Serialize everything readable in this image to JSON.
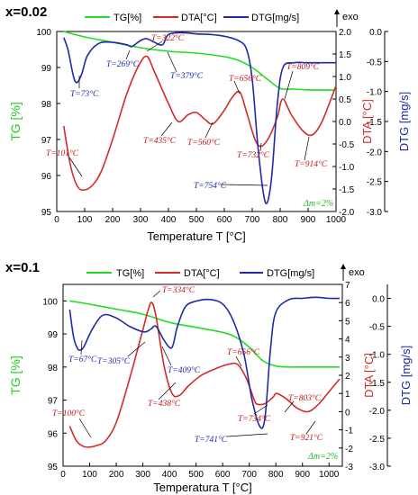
{
  "chart_data": [
    {
      "panel_label": "x=0.02",
      "type": "line",
      "legend": [
        "TG[%]",
        "DTA[°C]",
        "DTG[mg/s]"
      ],
      "exo_label": "exo",
      "xlabel": "Temperature T [°C]",
      "ylabel_left": "TG [%]",
      "ylabel_right1": "DTA [°C]",
      "ylabel_right2": "DTG [mg/s]",
      "xlim": [
        0,
        1000
      ],
      "y_tg_lim": [
        95,
        100
      ],
      "y_dta_lim": [
        -2.0,
        2.0
      ],
      "y_dtg_lim": [
        -3.0,
        0.0
      ],
      "x_ticks": [
        "0",
        "100",
        "200",
        "300",
        "400",
        "500",
        "600",
        "700",
        "800",
        "900",
        "1000"
      ],
      "tg_ticks": [
        "95",
        "96",
        "97",
        "98",
        "99",
        "100"
      ],
      "dta_ticks": [
        "-2.0",
        "-1.5",
        "-1.0",
        "-0.5",
        "0.0",
        "0.5",
        "1.0",
        "1.5",
        "2.0"
      ],
      "dtg_ticks": [
        "-3.0",
        "-2.5",
        "-2.0",
        "-1.5",
        "-1.0",
        "-0.5",
        "0.0"
      ],
      "colors": {
        "tg": "#22dd22",
        "dta": "#d42a2a",
        "dtg": "#1f2aa8",
        "labels_red": "#c01818",
        "labels_blue": "#1f2aa8",
        "mass_loss": "#22bb22"
      },
      "mass_loss_label": "Δm=2%",
      "series": [
        {
          "name": "TG[%]",
          "axis": "tg",
          "x": [
            25,
            100,
            200,
            300,
            400,
            500,
            600,
            650,
            700,
            750,
            800,
            850,
            900,
            1000
          ],
          "y": [
            100.0,
            99.85,
            99.7,
            99.55,
            99.45,
            99.4,
            99.3,
            99.2,
            99.0,
            98.7,
            98.42,
            98.4,
            98.38,
            98.37
          ]
        },
        {
          "name": "DTA[°C]",
          "axis": "dta",
          "x": [
            25,
            50,
            75,
            101,
            130,
            160,
            200,
            250,
            290,
            322,
            350,
            400,
            435,
            470,
            500,
            530,
            560,
            600,
            630,
            656,
            680,
            710,
            732,
            760,
            790,
            809,
            840,
            880,
            914,
            950,
            1000
          ],
          "y": [
            -0.1,
            -1.0,
            -1.45,
            -1.52,
            -1.4,
            -1.1,
            -0.4,
            0.6,
            1.2,
            1.45,
            1.1,
            0.4,
            0.0,
            0.15,
            0.2,
            0.05,
            -0.05,
            0.25,
            0.55,
            0.65,
            0.2,
            -0.4,
            -0.55,
            -0.35,
            0.1,
            0.5,
            0.15,
            -0.2,
            -0.3,
            0.0,
            0.8
          ]
        },
        {
          "name": "DTG[mg/s]",
          "axis": "dtg",
          "x": [
            25,
            40,
            60,
            73,
            90,
            110,
            150,
            200,
            250,
            269,
            300,
            322,
            350,
            379,
            400,
            450,
            500,
            550,
            600,
            650,
            680,
            700,
            720,
            740,
            754,
            770,
            790,
            810,
            850,
            900,
            950,
            1000
          ],
          "y": [
            -0.1,
            -0.3,
            -0.75,
            -0.85,
            -0.7,
            -0.4,
            -0.2,
            -0.18,
            -0.22,
            -0.25,
            -0.15,
            -0.12,
            -0.18,
            -0.22,
            -0.05,
            -0.02,
            -0.04,
            -0.05,
            -0.08,
            -0.15,
            -0.3,
            -0.8,
            -1.9,
            -2.7,
            -2.85,
            -2.4,
            -1.2,
            -0.6,
            -0.52,
            -0.52,
            -0.52,
            -0.52
          ]
        }
      ],
      "annotations": [
        {
          "text": "T=73°C",
          "color": "blue"
        },
        {
          "text": "T=269°C",
          "color": "blue"
        },
        {
          "text": "T=322°C",
          "color": "red"
        },
        {
          "text": "T=379°C",
          "color": "blue"
        },
        {
          "text": "T=656°C",
          "color": "red"
        },
        {
          "text": "T=809°C",
          "color": "red"
        },
        {
          "text": "T=101°C",
          "color": "red"
        },
        {
          "text": "T=435°C",
          "color": "red"
        },
        {
          "text": "T=560°C",
          "color": "red"
        },
        {
          "text": "T=732°C",
          "color": "red"
        },
        {
          "text": "T=914°C",
          "color": "red"
        },
        {
          "text": "T=754°C",
          "color": "blue"
        }
      ]
    },
    {
      "panel_label": "x=0.1",
      "type": "line",
      "legend": [
        "TG[%]",
        "DTA[°C]",
        "DTG[mg/s]"
      ],
      "exo_label": "exo",
      "xlabel": "Temperatura T [°C]",
      "ylabel_left": "TG [%]",
      "ylabel_right1": "DTA [°C]",
      "ylabel_right2": "DTG [mg/s]",
      "xlim": [
        0,
        1050
      ],
      "y_tg_lim": [
        95,
        100.5
      ],
      "y_dta_lim": [
        -3,
        7
      ],
      "y_dtg_lim": [
        -3.0,
        0.25
      ],
      "x_ticks": [
        "0",
        "100",
        "200",
        "300",
        "400",
        "500",
        "600",
        "700",
        "800",
        "900",
        "1000"
      ],
      "tg_ticks": [
        "95",
        "96",
        "97",
        "98",
        "99",
        "100"
      ],
      "dta_ticks": [
        "-3",
        "-2",
        "-1",
        "0",
        "1",
        "2",
        "3",
        "4",
        "5",
        "6",
        "7"
      ],
      "dtg_ticks": [
        "-3.0",
        "-2.5",
        "-2.0",
        "-1.5",
        "-1.0",
        "-0.5",
        "0.0"
      ],
      "colors": {
        "tg": "#22dd22",
        "dta": "#d42a2a",
        "dtg": "#1f2aa8",
        "labels_red": "#c01818",
        "labels_blue": "#1f2aa8",
        "mass_loss": "#22bb22"
      },
      "mass_loss_label": "Δm=2%",
      "series": [
        {
          "name": "TG[%]",
          "axis": "tg",
          "x": [
            25,
            100,
            200,
            300,
            400,
            500,
            600,
            650,
            700,
            750,
            800,
            850,
            900,
            1000,
            1040
          ],
          "y": [
            100.0,
            99.9,
            99.75,
            99.6,
            99.35,
            99.2,
            99.05,
            98.9,
            98.6,
            98.2,
            98.03,
            98.0,
            98.0,
            98.0,
            98.0
          ]
        },
        {
          "name": "DTA[°C]",
          "axis": "dta",
          "x": [
            25,
            50,
            75,
            100,
            130,
            160,
            200,
            250,
            300,
            320,
            334,
            350,
            380,
            410,
            438,
            470,
            520,
            580,
            620,
            656,
            690,
            720,
            734,
            760,
            790,
            803,
            840,
            880,
            921,
            960,
            1000,
            1040
          ],
          "y": [
            -0.8,
            -1.6,
            -1.9,
            -1.95,
            -1.85,
            -1.6,
            -0.6,
            1.8,
            4.5,
            5.6,
            6.0,
            5.2,
            2.5,
            1.0,
            0.9,
            1.4,
            2.0,
            2.4,
            2.6,
            2.6,
            1.8,
            0.6,
            0.4,
            0.45,
            0.8,
            1.0,
            0.7,
            0.2,
            0.0,
            0.4,
            1.1,
            1.8
          ]
        },
        {
          "name": "DTG[mg/s]",
          "axis": "dtg",
          "x": [
            25,
            40,
            55,
            67,
            80,
            110,
            150,
            200,
            250,
            305,
            330,
            350,
            380,
            409,
            430,
            460,
            500,
            550,
            600,
            640,
            680,
            710,
            741,
            760,
            780,
            800,
            850,
            900,
            950,
            1000,
            1040
          ],
          "y": [
            -0.2,
            -0.7,
            -0.9,
            -0.92,
            -0.85,
            -0.55,
            -0.3,
            -0.35,
            -0.5,
            -0.6,
            -0.55,
            -0.5,
            -0.75,
            -0.88,
            -0.5,
            -0.15,
            -0.05,
            -0.02,
            -0.1,
            -0.4,
            -1.0,
            -1.8,
            -2.3,
            -2.1,
            -0.9,
            -0.25,
            -0.02,
            0.0,
            0.02,
            0.0,
            0.0
          ]
        }
      ],
      "annotations": [
        {
          "text": "T=334°C",
          "color": "red"
        },
        {
          "text": "T=67°C",
          "color": "blue"
        },
        {
          "text": "T=305°C",
          "color": "blue"
        },
        {
          "text": "T=409°C",
          "color": "blue"
        },
        {
          "text": "T=656°C",
          "color": "red"
        },
        {
          "text": "T=803°C",
          "color": "red"
        },
        {
          "text": "T=100°C",
          "color": "red"
        },
        {
          "text": "T=438°C",
          "color": "red"
        },
        {
          "text": "T=734°C",
          "color": "red"
        },
        {
          "text": "T=741°C",
          "color": "blue"
        },
        {
          "text": "T=921°C",
          "color": "red"
        }
      ]
    }
  ]
}
